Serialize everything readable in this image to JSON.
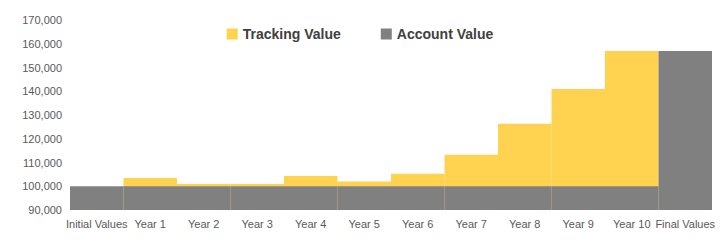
{
  "chart_data": {
    "type": "bar",
    "categories": [
      "Initial Values",
      "Year 1",
      "Year 2",
      "Year 3",
      "Year 4",
      "Year 5",
      "Year 6",
      "Year 7",
      "Year 8",
      "Year 9",
      "Year 10",
      "Final Values"
    ],
    "series": [
      {
        "name": "Tracking Value",
        "color": "#FFD34F",
        "values": [
          null,
          103500,
          101000,
          101000,
          104300,
          102000,
          105300,
          113300,
          126300,
          141000,
          157000,
          null
        ]
      },
      {
        "name": "Account Value",
        "color": "#808080",
        "values": [
          100000,
          100000,
          100000,
          100000,
          100000,
          100000,
          100000,
          100000,
          100000,
          100000,
          100000,
          157000
        ]
      }
    ],
    "ylim": [
      90000,
      170000
    ],
    "yticks": [
      {
        "value": 90000,
        "label": "90,000"
      },
      {
        "value": 100000,
        "label": "100,000"
      },
      {
        "value": 110000,
        "label": "110,000"
      },
      {
        "value": 120000,
        "label": "120,000"
      },
      {
        "value": 130000,
        "label": "130,000"
      },
      {
        "value": 140000,
        "label": "140,000"
      },
      {
        "value": 150000,
        "label": "150,000"
      },
      {
        "value": 160000,
        "label": "160,000"
      },
      {
        "value": 170000,
        "label": "170,000"
      }
    ],
    "grid": false,
    "legend": "top",
    "stacked": false
  }
}
